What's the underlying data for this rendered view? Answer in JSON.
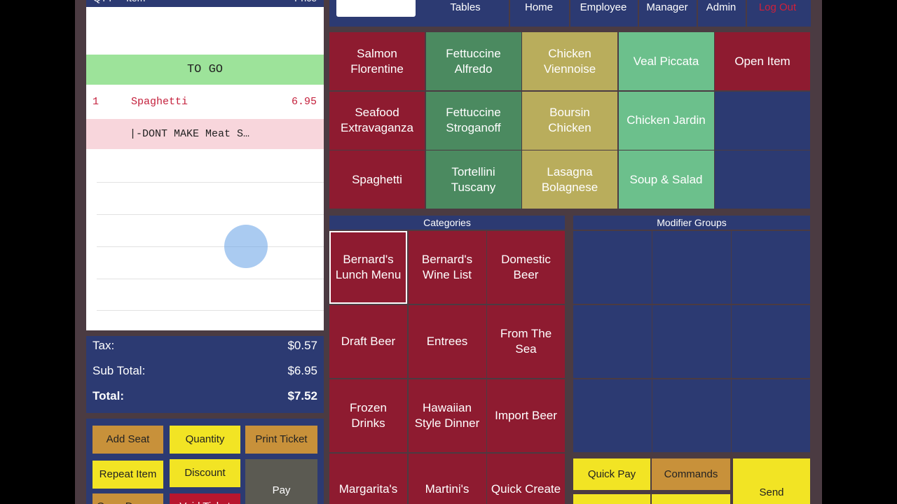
{
  "ticket": {
    "columns": [
      "QTY",
      "Item",
      "Price"
    ],
    "tag": "TO GO",
    "items": [
      {
        "qty": "1",
        "name": "Spaghetti",
        "price": "6.95"
      }
    ],
    "modifier": "|-DONT MAKE Meat S…"
  },
  "totals": [
    {
      "label": "Tax:",
      "value": "$0.57"
    },
    {
      "label": "Sub Total:",
      "value": "$6.95"
    },
    {
      "label": "Total:",
      "value": "$7.52"
    }
  ],
  "actions": [
    "Add Seat",
    "Quantity",
    "Print Ticket",
    "Repeat Item",
    "Discount",
    "Pay",
    "Open Drawer",
    "Void Ticket"
  ],
  "nav": [
    "Tables",
    "Home",
    "Employee",
    "Manager",
    "Admin",
    "Log Out"
  ],
  "menu": [
    [
      {
        "label": "Salmon Florentine",
        "color": "#8e1b30"
      },
      {
        "label": "Fettuccine Alfredo",
        "color": "#4b8a60"
      },
      {
        "label": "Chicken Viennoise",
        "color": "#b9ad5c"
      },
      {
        "label": "Veal Piccata",
        "color": "#6cc08c"
      },
      {
        "label": "Open Item",
        "color": "#8e1b30"
      }
    ],
    [
      {
        "label": "Seafood Extravaganza",
        "color": "#8e1b30"
      },
      {
        "label": "Fettuccine Stroganoff",
        "color": "#4b8a60"
      },
      {
        "label": "Boursin Chicken",
        "color": "#b9ad5c"
      },
      {
        "label": "Chicken Jardin",
        "color": "#6cc08c"
      }
    ],
    [
      {
        "label": "Spaghetti",
        "color": "#8e1b30"
      },
      {
        "label": "Tortellini Tuscany",
        "color": "#4b8a60"
      },
      {
        "label": "Lasagna Bolagnese",
        "color": "#b9ad5c"
      },
      {
        "label": "Soup & Salad",
        "color": "#6cc08c"
      }
    ]
  ],
  "categories": {
    "title": "Categories",
    "items": [
      "Bernard's Lunch Menu",
      "Bernard's Wine List",
      "Domestic Beer",
      "Draft Beer",
      "Entrees",
      "From The Sea",
      "Frozen Drinks",
      "Hawaiian Style Dinner",
      "Import Beer",
      "Margarita's",
      "Martini's",
      "Quick Create"
    ]
  },
  "modifier_groups": {
    "title": "Modifier Groups"
  },
  "commands": [
    "Quick Pay",
    "Commands",
    "Send"
  ]
}
